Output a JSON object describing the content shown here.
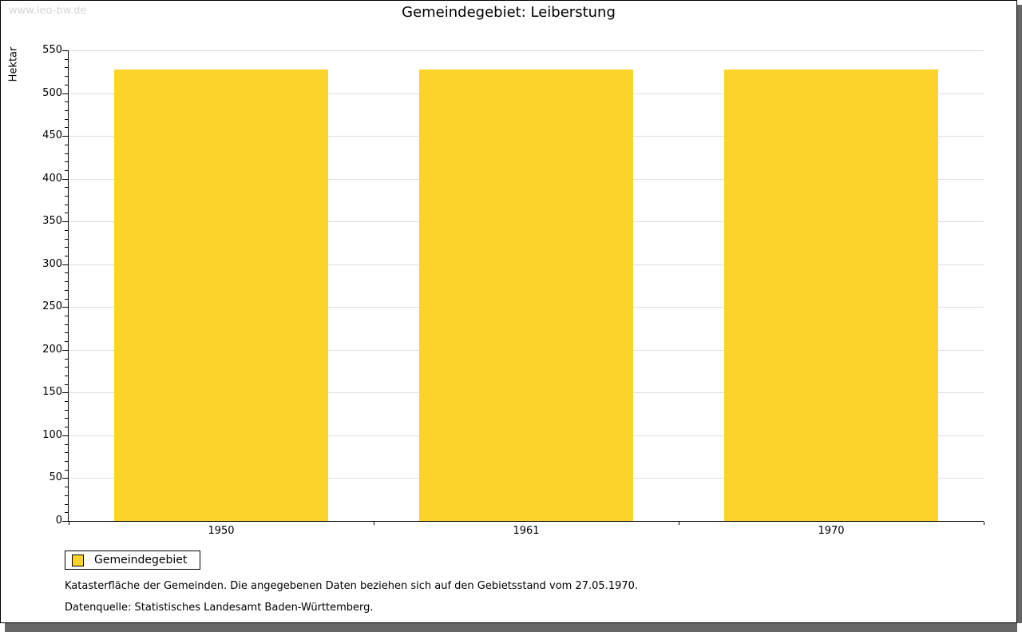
{
  "watermark": "www.leo-bw.de",
  "title": "Gemeindegebiet: Leiberstung",
  "chart_data": {
    "type": "bar",
    "title": "Gemeindegebiet: Leiberstung",
    "categories": [
      "1950",
      "1961",
      "1970"
    ],
    "series": [
      {
        "name": "Gemeindegebiet",
        "values": [
          528,
          528,
          528
        ]
      }
    ],
    "xlabel": "",
    "ylabel": "Hektar",
    "ylim": [
      0,
      550
    ],
    "ytick_major_step": 50,
    "ytick_minor_step": 10,
    "grid": "horizontal major gridlines only",
    "legend_position": "bottom-left outside",
    "bar_color": "#fcd32b"
  },
  "legend": {
    "items": [
      {
        "label": "Gemeindegebiet",
        "color": "#fcd32b"
      }
    ]
  },
  "footnotes": [
    "Katasterfläche der Gemeinden. Die angegebenen Daten beziehen sich auf den Gebietsstand vom 27.05.1970.",
    "Datenquelle: Statistisches Landesamt Baden-Württemberg."
  ],
  "colors": {
    "bar": "#fcd32b",
    "gridline": "#dedede",
    "axis": "#000000",
    "watermark": "#d6d6d6",
    "frame_shadow": "#666666",
    "background": "#ffffff"
  }
}
